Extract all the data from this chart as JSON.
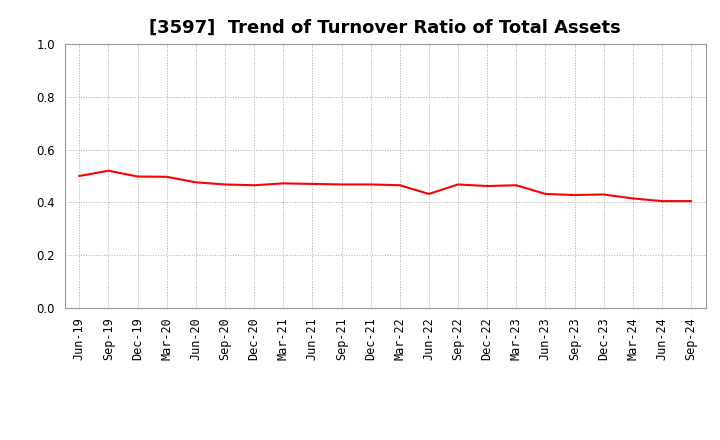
{
  "title": "[3597]  Trend of Turnover Ratio of Total Assets",
  "x_labels": [
    "Jun-19",
    "Sep-19",
    "Dec-19",
    "Mar-20",
    "Jun-20",
    "Sep-20",
    "Dec-20",
    "Mar-21",
    "Jun-21",
    "Sep-21",
    "Dec-21",
    "Mar-22",
    "Jun-22",
    "Sep-22",
    "Dec-22",
    "Mar-23",
    "Jun-23",
    "Sep-23",
    "Dec-23",
    "Mar-24",
    "Jun-24",
    "Sep-24"
  ],
  "values": [
    0.5,
    0.52,
    0.498,
    0.497,
    0.476,
    0.468,
    0.465,
    0.472,
    0.47,
    0.468,
    0.468,
    0.465,
    0.432,
    0.468,
    0.462,
    0.465,
    0.432,
    0.428,
    0.43,
    0.415,
    0.405,
    0.405
  ],
  "line_color": "#ff0000",
  "ylim": [
    0.0,
    1.0
  ],
  "yticks": [
    0.0,
    0.2,
    0.4,
    0.6,
    0.8,
    1.0
  ],
  "background_color": "#ffffff",
  "grid_color": "#aaaaaa",
  "title_fontsize": 13,
  "tick_fontsize": 8.5
}
